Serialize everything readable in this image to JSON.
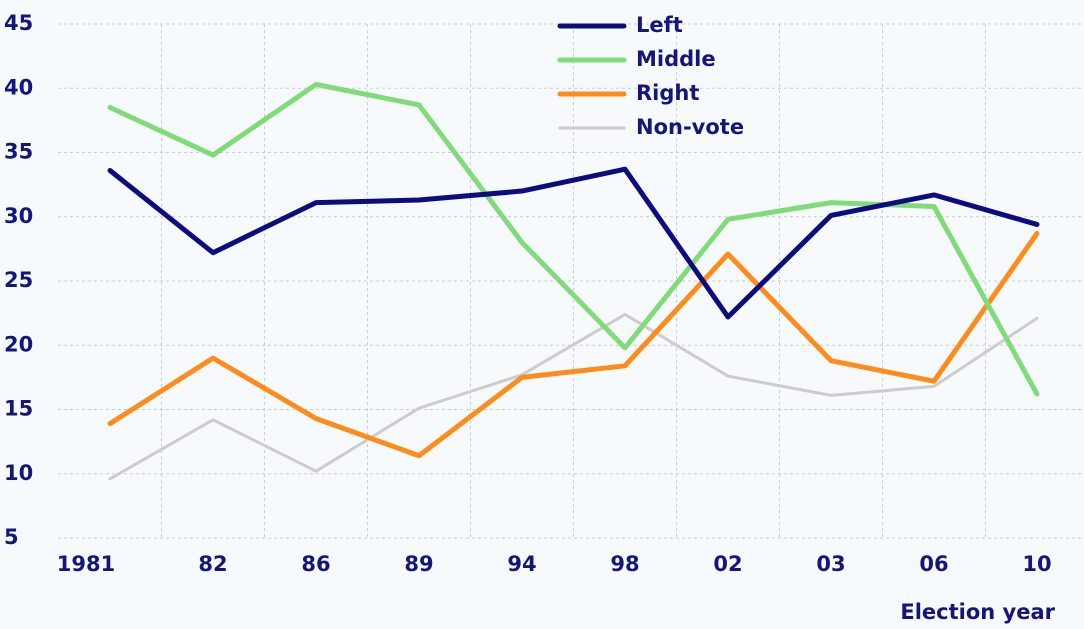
{
  "chart_data": {
    "type": "line",
    "x_label": "Election year",
    "categories": [
      "1981",
      "82",
      "86",
      "89",
      "94",
      "98",
      "02",
      "03",
      "06",
      "10"
    ],
    "series": [
      {
        "name": "Left",
        "color": "#0c0c80",
        "values": [
          33.6,
          27.2,
          31.1,
          31.3,
          32.0,
          33.7,
          22.2,
          30.1,
          31.7,
          29.4
        ]
      },
      {
        "name": "Middle",
        "color": "#80dc78",
        "values": [
          38.5,
          34.8,
          40.3,
          38.7,
          28.0,
          19.8,
          29.8,
          31.1,
          30.8,
          16.2
        ]
      },
      {
        "name": "Right",
        "color": "#ff8c1a",
        "values": [
          13.9,
          19.0,
          14.3,
          11.4,
          17.5,
          18.4,
          27.1,
          18.8,
          17.2,
          28.7
        ]
      },
      {
        "name": "Non-vote",
        "color": "#cccccc",
        "values": [
          9.6,
          14.2,
          10.2,
          15.1,
          17.7,
          22.4,
          17.6,
          16.1,
          16.8,
          22.1
        ]
      }
    ],
    "ylim": [
      5,
      45
    ],
    "yticks": [
      5,
      10,
      15,
      20,
      25,
      30,
      35,
      40,
      45
    ],
    "grid": true,
    "legend": "top"
  }
}
